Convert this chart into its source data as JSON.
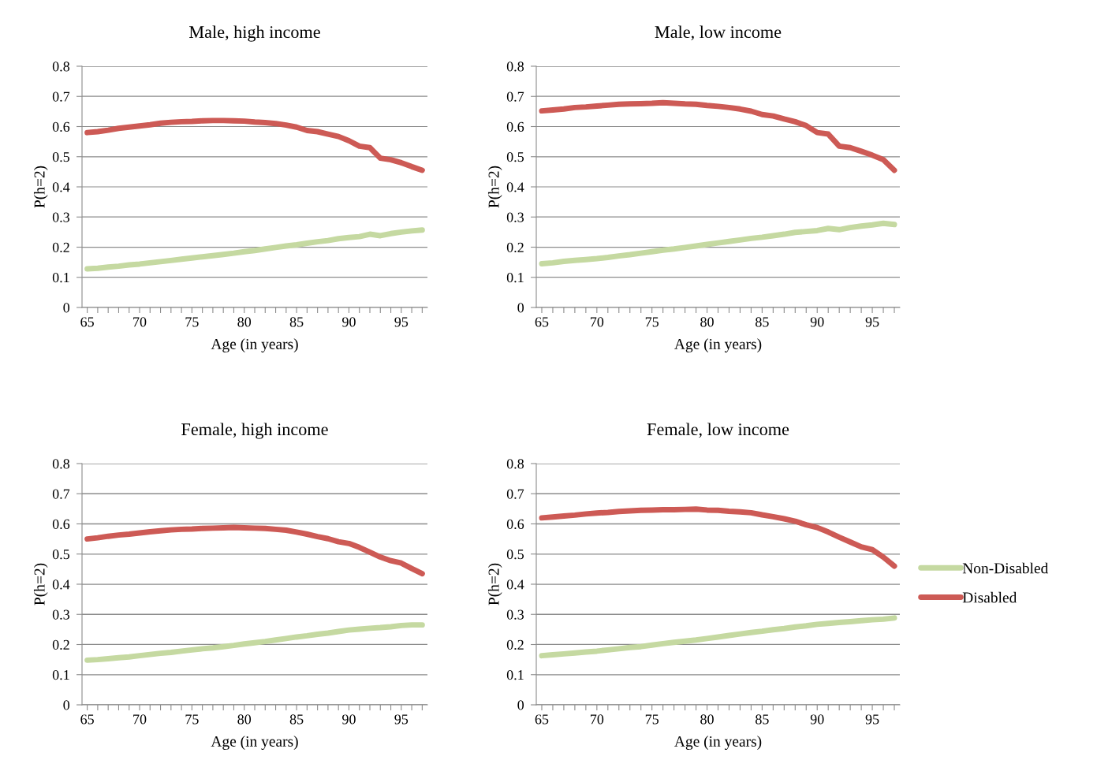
{
  "chart_data": [
    {
      "type": "line",
      "title": "Male, high income",
      "xlabel": "Age (in years)",
      "ylabel": "P(h=2)",
      "ylim": [
        0,
        0.8
      ],
      "yticks": [
        0,
        0.1,
        0.2,
        0.3,
        0.4,
        0.5,
        0.6,
        0.7,
        0.8
      ],
      "grid": "y",
      "marker": "none",
      "line_style": "solid",
      "categories": [
        "65",
        null,
        null,
        null,
        null,
        "70",
        null,
        null,
        null,
        null,
        "75",
        null,
        null,
        null,
        null,
        "80",
        null,
        null,
        null,
        null,
        "85",
        null,
        null,
        null,
        null,
        "90",
        null,
        null,
        null,
        null,
        "95",
        null,
        null
      ],
      "series": [
        {
          "color": "#c5d9a1",
          "values": [
            0.128,
            0.13,
            0.134,
            0.137,
            0.141,
            0.144,
            0.148,
            0.152,
            0.156,
            0.16,
            0.164,
            0.168,
            0.172,
            0.176,
            0.18,
            0.185,
            0.189,
            0.194,
            0.199,
            0.204,
            0.208,
            0.213,
            0.218,
            0.222,
            0.228,
            0.232,
            0.235,
            0.243,
            0.238,
            0.245,
            0.25,
            0.254,
            0.257
          ]
        },
        {
          "color": "#cd5a55",
          "values": [
            0.58,
            0.583,
            0.588,
            0.594,
            0.598,
            0.602,
            0.606,
            0.611,
            0.614,
            0.616,
            0.617,
            0.619,
            0.62,
            0.62,
            0.619,
            0.618,
            0.615,
            0.613,
            0.61,
            0.605,
            0.598,
            0.587,
            0.583,
            0.575,
            0.567,
            0.553,
            0.535,
            0.53,
            0.495,
            0.49,
            0.48,
            0.467,
            0.455
          ]
        }
      ]
    },
    {
      "type": "line",
      "title": "Male, low income",
      "xlabel": "Age (in years)",
      "ylabel": "P(h=2)",
      "ylim": [
        0,
        0.8
      ],
      "yticks": [
        0,
        0.1,
        0.2,
        0.3,
        0.4,
        0.5,
        0.6,
        0.7,
        0.8
      ],
      "grid": "y",
      "marker": "none",
      "line_style": "solid",
      "categories": [
        "65",
        null,
        null,
        null,
        null,
        "70",
        null,
        null,
        null,
        null,
        "75",
        null,
        null,
        null,
        null,
        "80",
        null,
        null,
        null,
        null,
        "85",
        null,
        null,
        null,
        null,
        "90",
        null,
        null,
        null,
        null,
        "95",
        null,
        null
      ],
      "series": [
        {
          "color": "#c5d9a1",
          "values": [
            0.145,
            0.148,
            0.153,
            0.156,
            0.159,
            0.162,
            0.166,
            0.171,
            0.175,
            0.18,
            0.185,
            0.19,
            0.194,
            0.199,
            0.204,
            0.209,
            0.214,
            0.219,
            0.224,
            0.229,
            0.233,
            0.238,
            0.243,
            0.249,
            0.252,
            0.255,
            0.262,
            0.258,
            0.265,
            0.27,
            0.274,
            0.279,
            0.275
          ]
        },
        {
          "color": "#cd5a55",
          "values": [
            0.652,
            0.655,
            0.658,
            0.663,
            0.665,
            0.668,
            0.671,
            0.674,
            0.675,
            0.676,
            0.677,
            0.679,
            0.677,
            0.675,
            0.674,
            0.67,
            0.667,
            0.663,
            0.658,
            0.651,
            0.64,
            0.635,
            0.625,
            0.616,
            0.603,
            0.58,
            0.575,
            0.535,
            0.53,
            0.518,
            0.505,
            0.49,
            0.455
          ]
        }
      ]
    },
    {
      "type": "line",
      "title": "Female, high income",
      "xlabel": "Age (in years)",
      "ylabel": "P(h=2)",
      "ylim": [
        0,
        0.8
      ],
      "yticks": [
        0,
        0.1,
        0.2,
        0.3,
        0.4,
        0.5,
        0.6,
        0.7,
        0.8
      ],
      "grid": "y",
      "marker": "none",
      "line_style": "solid",
      "categories": [
        "65",
        null,
        null,
        null,
        null,
        "70",
        null,
        null,
        null,
        null,
        "75",
        null,
        null,
        null,
        null,
        "80",
        null,
        null,
        null,
        null,
        "85",
        null,
        null,
        null,
        null,
        "90",
        null,
        null,
        null,
        null,
        "95",
        null,
        null
      ],
      "series": [
        {
          "color": "#c5d9a1",
          "values": [
            0.148,
            0.15,
            0.153,
            0.156,
            0.159,
            0.163,
            0.167,
            0.171,
            0.174,
            0.178,
            0.182,
            0.186,
            0.189,
            0.193,
            0.197,
            0.202,
            0.206,
            0.21,
            0.215,
            0.22,
            0.225,
            0.229,
            0.234,
            0.238,
            0.243,
            0.248,
            0.251,
            0.254,
            0.256,
            0.259,
            0.263,
            0.265,
            0.265
          ]
        },
        {
          "color": "#cd5a55",
          "values": [
            0.55,
            0.554,
            0.559,
            0.563,
            0.566,
            0.57,
            0.574,
            0.577,
            0.58,
            0.582,
            0.583,
            0.585,
            0.586,
            0.587,
            0.588,
            0.587,
            0.586,
            0.585,
            0.582,
            0.579,
            0.573,
            0.566,
            0.558,
            0.551,
            0.541,
            0.535,
            0.522,
            0.506,
            0.49,
            0.478,
            0.47,
            0.452,
            0.435
          ]
        }
      ]
    },
    {
      "type": "line",
      "title": "Female, low income",
      "xlabel": "Age (in years)",
      "ylabel": "P(h=2)",
      "ylim": [
        0,
        0.8
      ],
      "yticks": [
        0,
        0.1,
        0.2,
        0.3,
        0.4,
        0.5,
        0.6,
        0.7,
        0.8
      ],
      "grid": "y",
      "marker": "none",
      "line_style": "solid",
      "legend": "right",
      "categories": [
        "65",
        null,
        null,
        null,
        null,
        "70",
        null,
        null,
        null,
        null,
        "75",
        null,
        null,
        null,
        null,
        "80",
        null,
        null,
        null,
        null,
        "85",
        null,
        null,
        null,
        null,
        "90",
        null,
        null,
        null,
        null,
        "95",
        null,
        null
      ],
      "series": [
        {
          "name": "Non-Disabled",
          "color": "#c5d9a1",
          "values": [
            0.163,
            0.166,
            0.169,
            0.172,
            0.175,
            0.178,
            0.182,
            0.186,
            0.19,
            0.193,
            0.198,
            0.203,
            0.207,
            0.211,
            0.215,
            0.22,
            0.225,
            0.23,
            0.235,
            0.24,
            0.244,
            0.249,
            0.253,
            0.258,
            0.262,
            0.267,
            0.27,
            0.273,
            0.276,
            0.279,
            0.282,
            0.284,
            0.288
          ]
        },
        {
          "name": "Disabled",
          "color": "#cd5a55",
          "values": [
            0.62,
            0.623,
            0.626,
            0.629,
            0.633,
            0.636,
            0.638,
            0.641,
            0.643,
            0.645,
            0.646,
            0.647,
            0.647,
            0.648,
            0.649,
            0.646,
            0.645,
            0.642,
            0.64,
            0.637,
            0.63,
            0.624,
            0.617,
            0.609,
            0.597,
            0.588,
            0.573,
            0.556,
            0.54,
            0.524,
            0.515,
            0.49,
            0.46
          ]
        }
      ]
    }
  ]
}
